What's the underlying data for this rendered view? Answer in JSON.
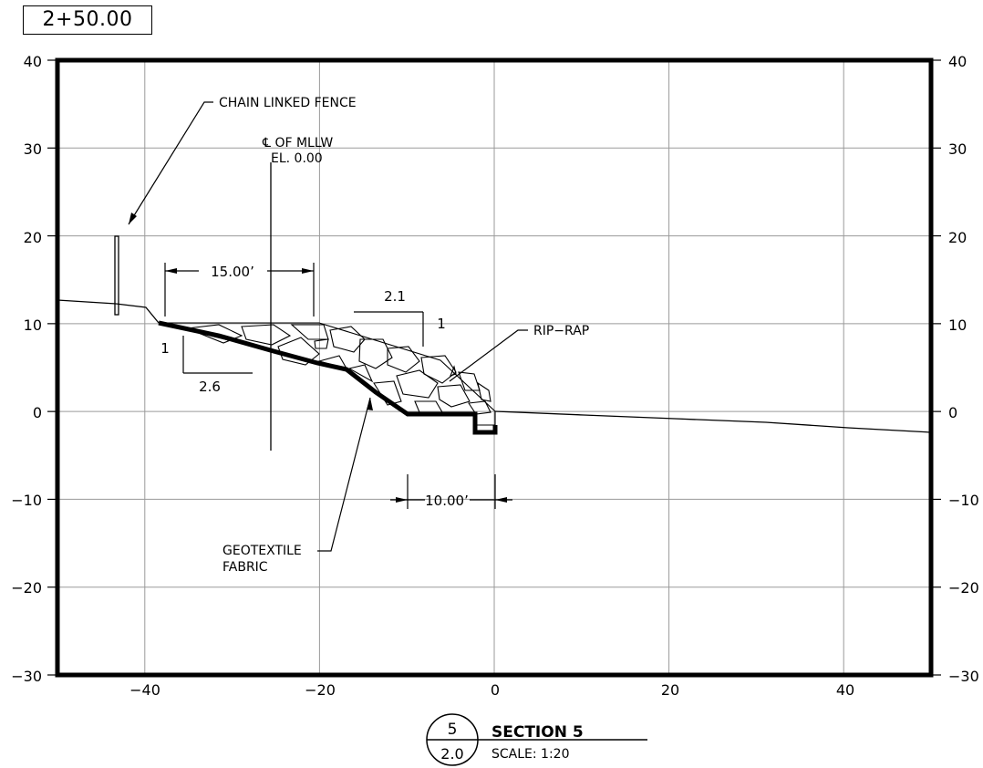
{
  "station": "2+50.00",
  "y_axis": {
    "ticks_left": [
      "40",
      "30",
      "20",
      "10",
      "0",
      "−10",
      "−20",
      "−30"
    ],
    "ticks_right": [
      "40",
      "30",
      "20",
      "10",
      "0",
      "−10",
      "−20",
      "−30"
    ],
    "values": [
      40,
      30,
      20,
      10,
      0,
      -10,
      -20,
      -30
    ],
    "range": [
      -30,
      40
    ]
  },
  "x_axis": {
    "ticks": [
      "−40",
      "−20",
      "0",
      "20",
      "40"
    ],
    "values": [
      -40,
      -20,
      0,
      20,
      40
    ],
    "range": [
      -50,
      50
    ]
  },
  "labels": {
    "fence": "CHAIN LINKED FENCE",
    "centerline_line1": "℄ OF MLLW",
    "centerline_line2": "EL. 0.00",
    "dim_top": "15.00’",
    "dim_bottom": "10.00’",
    "slope_left_run": "2.6",
    "slope_left_rise": "1",
    "slope_right_run": "2.1",
    "slope_right_rise": "1",
    "riprap": "RIP−RAP",
    "geotextile_line1": "GEOTEXTILE",
    "geotextile_line2": "FABRIC"
  },
  "title_block": {
    "section_number": "5",
    "sheet_number": "2.0",
    "title": "SECTION 5",
    "scale": "SCALE:  1:20"
  }
}
